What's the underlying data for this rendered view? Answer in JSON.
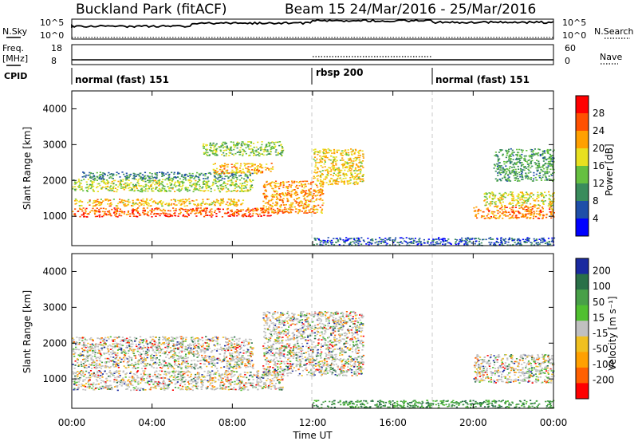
{
  "header": {
    "site_title": "Buckland Park (fitACF)",
    "beam_title": "Beam 15  24/Mar/2016 - 25/Mar/2016"
  },
  "summary_panels": {
    "nsky_label": "N.Sky",
    "nsearch_label": "N.Search",
    "nsky_ticks": [
      "10^5",
      "10^0"
    ],
    "nsky_right_ticks": [
      "10^5",
      "10^0"
    ],
    "freq_label_1": "Freq.",
    "freq_label_2": "[MHz]",
    "freq_ticks": [
      "18",
      "8"
    ],
    "nave_label": "Nave",
    "nave_ticks": [
      "60",
      "0"
    ],
    "cpid_label": "CPID",
    "cpid_segments": [
      {
        "label": "normal (fast) 151",
        "start": 0,
        "end": 12
      },
      {
        "label": "rbsp 200",
        "start": 12,
        "end": 18
      },
      {
        "label": "normal (fast) 151",
        "start": 18,
        "end": 24
      }
    ]
  },
  "x_axis": {
    "title": "Time UT",
    "range_hours": [
      0,
      24
    ],
    "tick_labels": [
      "00:00",
      "04:00",
      "08:00",
      "12:00",
      "16:00",
      "20:00",
      "00:00"
    ]
  },
  "chart_data": [
    {
      "type": "heatmap",
      "name": "power",
      "ylabel": "Slant Range [km]",
      "ylim": [
        180,
        4500
      ],
      "yticks": [
        "1000",
        "2000",
        "3000",
        "4000"
      ],
      "colorbar_label": "Power [dB]",
      "colorbar_ticks": [
        "4",
        "8",
        "12",
        "16",
        "20",
        "24",
        "28"
      ],
      "colorbar_colors": [
        "#0000ff",
        "#1f4fa8",
        "#3a8c5c",
        "#66c040",
        "#e8e020",
        "#ffa000",
        "#ff5000",
        "#ff0000"
      ],
      "echo_bands": [
        {
          "t0": 0.0,
          "t1": 10.0,
          "r0": 1000,
          "r1": 1050,
          "level": 0.95
        },
        {
          "t0": 0.0,
          "t1": 10.5,
          "r0": 1050,
          "r1": 1250,
          "level": 0.8
        },
        {
          "t0": 0.0,
          "t1": 8.5,
          "r0": 1300,
          "r1": 1500,
          "level": 0.62
        },
        {
          "t0": 0.0,
          "t1": 9.0,
          "r0": 1700,
          "r1": 2050,
          "level": 0.5
        },
        {
          "t0": 0.5,
          "t1": 9.0,
          "r0": 2050,
          "r1": 2250,
          "level": 0.3
        },
        {
          "t0": 7.0,
          "t1": 10.0,
          "r0": 2200,
          "r1": 2500,
          "level": 0.65
        },
        {
          "t0": 6.5,
          "t1": 10.5,
          "r0": 2700,
          "r1": 3100,
          "level": 0.45
        },
        {
          "t0": 9.5,
          "t1": 12.5,
          "r0": 1100,
          "r1": 2000,
          "level": 0.7
        },
        {
          "t0": 12.0,
          "t1": 14.5,
          "r0": 1900,
          "r1": 2900,
          "level": 0.6
        },
        {
          "t0": 20.0,
          "t1": 24.0,
          "r0": 950,
          "r1": 1300,
          "level": 0.75
        },
        {
          "t0": 20.5,
          "t1": 24.0,
          "r0": 1300,
          "r1": 1700,
          "level": 0.55
        },
        {
          "t0": 21.0,
          "t1": 24.0,
          "r0": 2000,
          "r1": 2900,
          "level": 0.35
        },
        {
          "t0": 12.0,
          "t1": 24.0,
          "r0": 200,
          "r1": 420,
          "level": 0.2
        }
      ]
    },
    {
      "type": "heatmap",
      "name": "velocity",
      "ylabel": "Slant Range [km]",
      "ylim": [
        180,
        4500
      ],
      "yticks": [
        "1000",
        "2000",
        "3000",
        "4000"
      ],
      "colorbar_label": "Velocity [m s⁻¹]",
      "colorbar_ticks": [
        "200",
        "100",
        "50",
        "15",
        "-15",
        "-50",
        "-100",
        "-200"
      ],
      "colorbar_colors": [
        "#1a2aa0",
        "#2a7048",
        "#48a048",
        "#50c030",
        "#c0c0c0",
        "#f0c020",
        "#ffa000",
        "#ff6000",
        "#ff0000"
      ],
      "echo_bands": [
        {
          "t0": 0.0,
          "t1": 10.5,
          "r0": 700,
          "r1": 1250,
          "level": 0.5
        },
        {
          "t0": 0.0,
          "t1": 9.0,
          "r0": 1300,
          "r1": 2200,
          "level": 0.55
        },
        {
          "t0": 9.5,
          "t1": 14.5,
          "r0": 1100,
          "r1": 2900,
          "level": 0.5
        },
        {
          "t0": 20.0,
          "t1": 24.0,
          "r0": 900,
          "r1": 1700,
          "level": 0.5
        },
        {
          "t0": 12.0,
          "t1": 24.0,
          "r0": 200,
          "r1": 420,
          "level": 0.62
        }
      ]
    }
  ],
  "colors": {
    "axis": "#000000",
    "divider_line": "#c8c8c8"
  }
}
